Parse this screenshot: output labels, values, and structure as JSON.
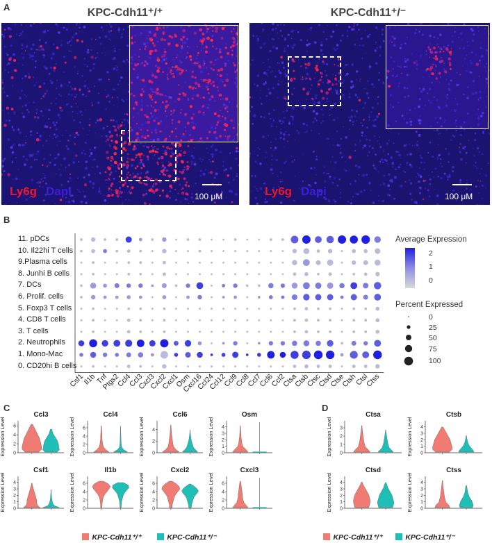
{
  "panelA": {
    "letter": "A",
    "left": {
      "title": "KPC-Cdh11⁺/⁺",
      "stain1": "Ly6g",
      "stain2": "Dapi",
      "scale": "100 μM"
    },
    "right": {
      "title": "KPC-Cdh11⁺/⁻",
      "stain1": "Ly6g",
      "stain2": "Dapi",
      "scale": "100 μM"
    },
    "colors": {
      "ly6g": "#e8182a",
      "dapi": "#3b1fd6",
      "tissue": "#1a1270"
    }
  },
  "panelB": {
    "letter": "B",
    "legend": {
      "avg_title": "Average Expression",
      "avg_ticks": [
        "2",
        "1",
        "0"
      ],
      "pct_title": "Percent Expressed",
      "pct_ticks": [
        "0",
        "25",
        "50",
        "75",
        "100"
      ],
      "color_low": "#d9d9d9",
      "color_high": "#1f1fe0"
    },
    "clusters": [
      "11. pDCs",
      "10. Il22hi T cells",
      "9.Plasma cells",
      "8. Junhi B cells",
      "7. DCs",
      "6. Prolif. cells",
      "5. Foxp3 T cells",
      "4. CD8 T cells",
      "3. T cells",
      "2. Neutrophils",
      "1. Mono-Mac",
      "0. CD20hi B cells"
    ],
    "genes": [
      "Csf1",
      "Il1b",
      "Tnf",
      "Ptgs2",
      "Ccl4",
      "Ccl3",
      "Cxcl3",
      "Cxcl2",
      "Cxcl1",
      "Osm",
      "Cxcl16",
      "Ccl24",
      "Ccl12",
      "Ccl9",
      "Ccl8",
      "Ccl7",
      "Ccl6",
      "Ccl2",
      "Ctsa",
      "Ctsb",
      "Ctsc",
      "Ctsd",
      "Ctse",
      "Ctsh",
      "Ctsl",
      "Ctss"
    ]
  },
  "chart_data": {
    "type": "scatter",
    "subtype": "dotplot",
    "x_categories": [
      "Csf1",
      "Il1b",
      "Tnf",
      "Ptgs2",
      "Ccl4",
      "Ccl3",
      "Cxcl3",
      "Cxcl2",
      "Cxcl1",
      "Osm",
      "Cxcl16",
      "Ccl24",
      "Ccl12",
      "Ccl9",
      "Ccl8",
      "Ccl7",
      "Ccl6",
      "Ccl2",
      "Ctsa",
      "Ctsb",
      "Ctsc",
      "Ctsd",
      "Ctse",
      "Ctsh",
      "Ctsl",
      "Ctss"
    ],
    "y_categories": [
      "11. pDCs",
      "10. Il22hi T cells",
      "9.Plasma cells",
      "8. Junhi B cells",
      "7. DCs",
      "6. Prolif. cells",
      "5. Foxp3 T cells",
      "4. CD8 T cells",
      "3. T cells",
      "2. Neutrophils",
      "1. Mono-Mac",
      "0. CD20hi B cells"
    ],
    "pct_expressed": [
      [
        5,
        20,
        5,
        5,
        45,
        10,
        5,
        20,
        2,
        5,
        5,
        2,
        2,
        5,
        2,
        2,
        5,
        5,
        70,
        85,
        55,
        65,
        85,
        80,
        90,
        50
      ],
      [
        5,
        15,
        15,
        5,
        10,
        5,
        2,
        20,
        2,
        2,
        5,
        2,
        2,
        2,
        2,
        2,
        2,
        2,
        20,
        40,
        10,
        20,
        2,
        15,
        15,
        35
      ],
      [
        2,
        5,
        2,
        2,
        5,
        5,
        2,
        10,
        2,
        2,
        2,
        2,
        2,
        2,
        2,
        2,
        2,
        2,
        30,
        55,
        25,
        45,
        2,
        20,
        25,
        40
      ],
      [
        2,
        5,
        2,
        2,
        5,
        5,
        2,
        10,
        2,
        2,
        2,
        2,
        2,
        2,
        2,
        2,
        2,
        2,
        10,
        15,
        5,
        10,
        2,
        5,
        10,
        20
      ],
      [
        5,
        40,
        15,
        25,
        20,
        20,
        5,
        25,
        5,
        20,
        55,
        2,
        10,
        20,
        5,
        5,
        30,
        20,
        40,
        55,
        45,
        45,
        30,
        55,
        35,
        65
      ],
      [
        5,
        20,
        10,
        10,
        15,
        10,
        2,
        15,
        2,
        10,
        20,
        2,
        5,
        10,
        2,
        5,
        15,
        10,
        35,
        50,
        45,
        45,
        10,
        45,
        25,
        55
      ],
      [
        2,
        5,
        2,
        2,
        5,
        5,
        2,
        5,
        2,
        2,
        2,
        2,
        2,
        2,
        2,
        2,
        2,
        2,
        5,
        10,
        5,
        5,
        2,
        5,
        5,
        15
      ],
      [
        2,
        5,
        2,
        2,
        10,
        5,
        2,
        5,
        2,
        2,
        2,
        2,
        2,
        2,
        2,
        2,
        2,
        2,
        5,
        10,
        5,
        5,
        2,
        5,
        5,
        15
      ],
      [
        2,
        5,
        2,
        2,
        10,
        5,
        2,
        5,
        2,
        2,
        2,
        2,
        2,
        2,
        2,
        2,
        2,
        2,
        5,
        10,
        5,
        5,
        2,
        5,
        5,
        15
      ],
      [
        40,
        80,
        50,
        55,
        60,
        70,
        45,
        85,
        25,
        50,
        15,
        2,
        5,
        20,
        2,
        5,
        20,
        20,
        30,
        40,
        30,
        50,
        5,
        25,
        20,
        55
      ],
      [
        15,
        40,
        20,
        15,
        25,
        30,
        10,
        70,
        15,
        35,
        40,
        5,
        15,
        45,
        5,
        15,
        70,
        40,
        80,
        90,
        95,
        90,
        10,
        75,
        55,
        95
      ],
      [
        2,
        5,
        2,
        2,
        10,
        5,
        2,
        20,
        2,
        2,
        2,
        2,
        2,
        2,
        2,
        2,
        2,
        2,
        10,
        15,
        10,
        10,
        2,
        10,
        10,
        20
      ]
    ],
    "avg_expression": [
      [
        0,
        0,
        0,
        0,
        2,
        0.5,
        0,
        0.5,
        0,
        0,
        0,
        0,
        0,
        0,
        0,
        0,
        0,
        0,
        1.5,
        2.5,
        1.5,
        1.5,
        2.5,
        2.5,
        2.5,
        1
      ],
      [
        0,
        0,
        1,
        0,
        0,
        0,
        0,
        0,
        0,
        0,
        0,
        0,
        0,
        0,
        0,
        0,
        0,
        0,
        0,
        0,
        0,
        0,
        0,
        0,
        0,
        0
      ],
      [
        0,
        0,
        0,
        0,
        0,
        0,
        0,
        0,
        0,
        0,
        0,
        0,
        0,
        0,
        0,
        0,
        0,
        0,
        0,
        0.5,
        0,
        0,
        0,
        0,
        0,
        0
      ],
      [
        0,
        0,
        0,
        0,
        0,
        0,
        0,
        0,
        0,
        0,
        0,
        0,
        0,
        0,
        0,
        0,
        0,
        0,
        0,
        0,
        0,
        0,
        0,
        0,
        0,
        0
      ],
      [
        0,
        0.5,
        0.5,
        1,
        1,
        1,
        0.5,
        0.5,
        0,
        1,
        2,
        0,
        1,
        1,
        0,
        0,
        1,
        1,
        0.5,
        1,
        1,
        0.5,
        1,
        2,
        1,
        1.5
      ],
      [
        0,
        0.5,
        0.5,
        0.5,
        0.5,
        0.5,
        0,
        0.5,
        0,
        0.5,
        1,
        0,
        0.5,
        0.5,
        0,
        0.5,
        1,
        1,
        1,
        1.5,
        1.5,
        1.5,
        1,
        1.5,
        1,
        1.5
      ],
      [
        0,
        0,
        0,
        0,
        0,
        0,
        0,
        0,
        0,
        0,
        0,
        0,
        0,
        0,
        0,
        0,
        0,
        0,
        0,
        0,
        0,
        0,
        0,
        0,
        0,
        0
      ],
      [
        0,
        0,
        0,
        0,
        0,
        0,
        0,
        0,
        0,
        0,
        0,
        0,
        0,
        0,
        0,
        0,
        0,
        0,
        0,
        0,
        0,
        0,
        0,
        0,
        0,
        0
      ],
      [
        0,
        0,
        0,
        0,
        0,
        0,
        0,
        0,
        0,
        0,
        0,
        0,
        0,
        0,
        0,
        0,
        0,
        0,
        0,
        0,
        0,
        0,
        0,
        0,
        0,
        0
      ],
      [
        2,
        2.5,
        2,
        2,
        2,
        2.5,
        2,
        2.5,
        1.5,
        2,
        0.5,
        0,
        0.5,
        1,
        0,
        0.5,
        1,
        1,
        1,
        1,
        1,
        1.5,
        0,
        1,
        1,
        1.5
      ],
      [
        1,
        1.5,
        1,
        1,
        1,
        1,
        0.5,
        0,
        2,
        1.5,
        2,
        2,
        2,
        2,
        2,
        2,
        2.5,
        2.5,
        2,
        2,
        2.5,
        2.5,
        0.5,
        1.5,
        1.5,
        2.5
      ],
      [
        0,
        0,
        0,
        0,
        0,
        0,
        0,
        0,
        0,
        0,
        0,
        0,
        0,
        0,
        0,
        0,
        0,
        0,
        0,
        0,
        0,
        0,
        0,
        0,
        0,
        0
      ]
    ],
    "legend": {
      "avg_range": [
        -0.5,
        2.5
      ],
      "pct_range": [
        0,
        100
      ]
    }
  },
  "panelC": {
    "letter": "C",
    "ylabel": "Expression Level",
    "plots": [
      {
        "gene": "Ccl3",
        "ticks": [
          "0",
          "2",
          "4",
          "6"
        ],
        "max": 6.5
      },
      {
        "gene": "Ccl4",
        "ticks": [
          "0",
          "2",
          "4",
          "6"
        ],
        "max": 7
      },
      {
        "gene": "Ccl6",
        "ticks": [
          "0",
          "2",
          "4"
        ],
        "max": 5
      },
      {
        "gene": "Osm",
        "ticks": [
          "0",
          "1",
          "2",
          "3",
          "4"
        ],
        "max": 4.5
      },
      {
        "gene": "Csf1",
        "ticks": [
          "0",
          "1",
          "2",
          "3",
          "4"
        ],
        "max": 4.5
      },
      {
        "gene": "Il1b",
        "ticks": [
          "0",
          "2",
          "4",
          "6"
        ],
        "max": 7
      },
      {
        "gene": "Cxcl2",
        "ticks": [
          "0",
          "2",
          "4",
          "6"
        ],
        "max": 7
      },
      {
        "gene": "Cxcl3",
        "ticks": [
          "0",
          "2",
          "4",
          "6"
        ],
        "max": 7
      }
    ],
    "legend": {
      "wt": "KPC-Cdh11⁺/⁺",
      "het": "KPC-Cdh11⁺/⁻"
    }
  },
  "panelD": {
    "letter": "D",
    "ylabel": "Expression Level",
    "plots": [
      {
        "gene": "Ctsa",
        "ticks": [
          "0",
          "1",
          "2",
          "3"
        ],
        "max": 3.5
      },
      {
        "gene": "Ctsb",
        "ticks": [
          "0",
          "1",
          "2",
          "3",
          "4"
        ],
        "max": 4.5
      },
      {
        "gene": "Ctsd",
        "ticks": [
          "0",
          "1",
          "2",
          "3",
          "4"
        ],
        "max": 4.5
      },
      {
        "gene": "Ctss",
        "ticks": [
          "0",
          "1",
          "2",
          "3",
          "4"
        ],
        "max": 4.5
      }
    ],
    "legend": {
      "wt": "KPC-Cdh11⁺/⁺",
      "het": "KPC-Cdh11⁺/⁻"
    }
  },
  "colors": {
    "wt": "#f07b72",
    "het": "#1fbfb7"
  }
}
